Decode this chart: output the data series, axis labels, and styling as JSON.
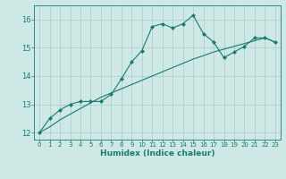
{
  "x": [
    0,
    1,
    2,
    3,
    4,
    5,
    6,
    7,
    8,
    9,
    10,
    11,
    12,
    13,
    14,
    15,
    16,
    17,
    18,
    19,
    20,
    21,
    22,
    23
  ],
  "y_curve": [
    12.0,
    12.5,
    12.8,
    13.0,
    13.1,
    13.1,
    13.1,
    13.35,
    13.9,
    14.5,
    14.9,
    15.75,
    15.85,
    15.7,
    15.85,
    16.15,
    15.5,
    15.2,
    14.65,
    14.85,
    15.05,
    15.35,
    15.35,
    15.2
  ],
  "y_trend": [
    12.0,
    12.2,
    12.45,
    12.65,
    12.85,
    13.05,
    13.25,
    13.4,
    13.55,
    13.7,
    13.85,
    14.0,
    14.15,
    14.3,
    14.45,
    14.6,
    14.72,
    14.85,
    14.95,
    15.05,
    15.15,
    15.25,
    15.35,
    15.2
  ],
  "xlabel": "Humidex (Indice chaleur)",
  "xlim": [
    -0.5,
    23.5
  ],
  "ylim": [
    11.75,
    16.5
  ],
  "yticks": [
    12,
    13,
    14,
    15,
    16
  ],
  "xticks": [
    0,
    1,
    2,
    3,
    4,
    5,
    6,
    7,
    8,
    9,
    10,
    11,
    12,
    13,
    14,
    15,
    16,
    17,
    18,
    19,
    20,
    21,
    22,
    23
  ],
  "line_color": "#1a7a6e",
  "bg_color": "#cde8e5",
  "grid_color": "#a8ccc9",
  "tick_color": "#1a7a6e",
  "label_color": "#1a7a6e"
}
